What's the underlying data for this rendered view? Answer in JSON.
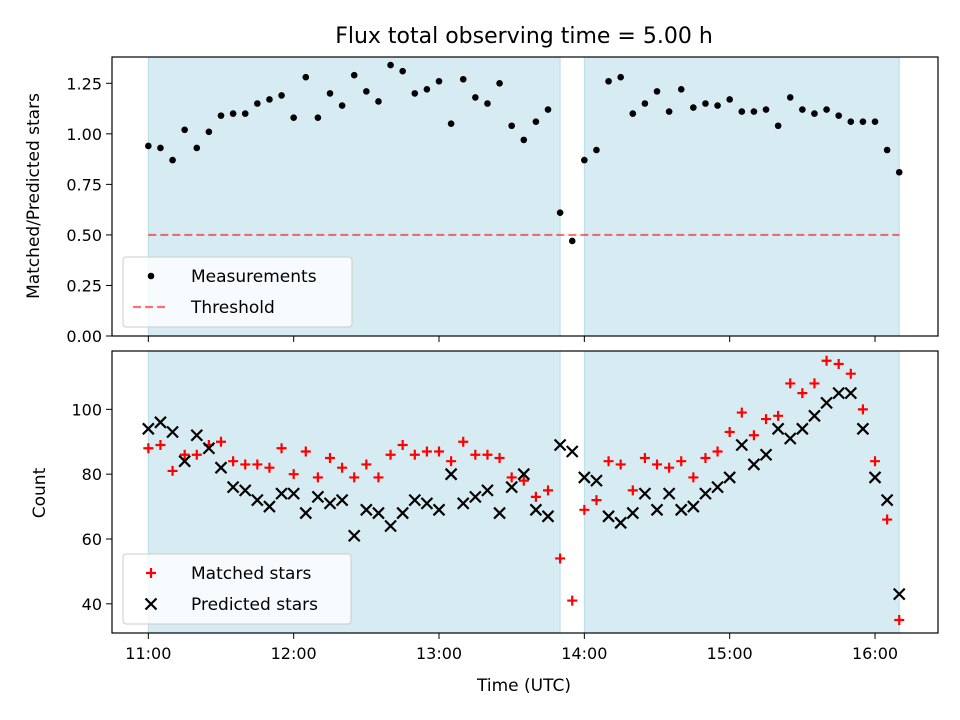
{
  "chart_data": [
    {
      "type": "scatter",
      "title": "Flux total observing time = 5.00 h",
      "xlabel": "",
      "ylabel": "Matched/Predicted stars",
      "x_unit": "hours UTC",
      "xlim": [
        "10:45",
        "16:26"
      ],
      "ylim": [
        0,
        1.38
      ],
      "yticks": [
        "0.00",
        "0.25",
        "0.50",
        "0.75",
        "1.00",
        "1.25"
      ],
      "xticks": [
        "11:00",
        "12:00",
        "13:00",
        "14:00",
        "15:00",
        "16:00"
      ],
      "shaded_intervals": [
        [
          "11:00",
          "13:50"
        ],
        [
          "14:00",
          "16:10"
        ]
      ],
      "threshold": 0.5,
      "legend": {
        "position": "lower-left",
        "entries": [
          "Measurements",
          "Threshold"
        ]
      },
      "series": [
        {
          "name": "Measurements",
          "marker": "dot",
          "color": "#000000",
          "x": [
            "11:00",
            "11:05",
            "11:10",
            "11:15",
            "11:20",
            "11:25",
            "11:30",
            "11:35",
            "11:40",
            "11:45",
            "11:50",
            "11:55",
            "12:00",
            "12:05",
            "12:10",
            "12:15",
            "12:20",
            "12:25",
            "12:30",
            "12:35",
            "12:40",
            "12:45",
            "12:50",
            "12:55",
            "13:00",
            "13:05",
            "13:10",
            "13:15",
            "13:20",
            "13:25",
            "13:30",
            "13:35",
            "13:40",
            "13:45",
            "13:50",
            "13:55",
            "14:00",
            "14:05",
            "14:10",
            "14:15",
            "14:20",
            "14:25",
            "14:30",
            "14:35",
            "14:40",
            "14:45",
            "14:50",
            "14:55",
            "15:00",
            "15:05",
            "15:10",
            "15:15",
            "15:20",
            "15:25",
            "15:30",
            "15:35",
            "15:40",
            "15:45",
            "15:50",
            "15:55",
            "16:00",
            "16:05",
            "16:10"
          ],
          "y": [
            0.94,
            0.93,
            0.87,
            1.02,
            0.93,
            1.01,
            1.09,
            1.1,
            1.1,
            1.15,
            1.17,
            1.19,
            1.08,
            1.28,
            1.08,
            1.2,
            1.14,
            1.29,
            1.21,
            1.16,
            1.34,
            1.31,
            1.2,
            1.22,
            1.26,
            1.05,
            1.27,
            1.18,
            1.15,
            1.25,
            1.04,
            0.97,
            1.06,
            1.12,
            0.61,
            0.47,
            0.87,
            0.92,
            1.26,
            1.28,
            1.1,
            1.15,
            1.21,
            1.11,
            1.22,
            1.13,
            1.15,
            1.14,
            1.17,
            1.11,
            1.11,
            1.12,
            1.04,
            1.18,
            1.12,
            1.1,
            1.12,
            1.09,
            1.06,
            1.06,
            1.06,
            0.92,
            0.81
          ]
        }
      ]
    },
    {
      "type": "scatter",
      "title": "",
      "xlabel": "Time (UTC)",
      "ylabel": "Count",
      "xlim": [
        "10:45",
        "16:26"
      ],
      "ylim": [
        31,
        118
      ],
      "yticks": [
        "40",
        "60",
        "80",
        "100"
      ],
      "xticks": [
        "11:00",
        "12:00",
        "13:00",
        "14:00",
        "15:00",
        "16:00"
      ],
      "shaded_intervals": [
        [
          "11:00",
          "13:50"
        ],
        [
          "14:00",
          "16:10"
        ]
      ],
      "legend": {
        "position": "lower-left",
        "entries": [
          "Matched stars",
          "Predicted stars"
        ]
      },
      "series": [
        {
          "name": "Matched stars",
          "marker": "plus",
          "color": "#ff0000",
          "x": [
            "11:00",
            "11:05",
            "11:10",
            "11:15",
            "11:20",
            "11:25",
            "11:30",
            "11:35",
            "11:40",
            "11:45",
            "11:50",
            "11:55",
            "12:00",
            "12:05",
            "12:10",
            "12:15",
            "12:20",
            "12:25",
            "12:30",
            "12:35",
            "12:40",
            "12:45",
            "12:50",
            "12:55",
            "13:00",
            "13:05",
            "13:10",
            "13:15",
            "13:20",
            "13:25",
            "13:30",
            "13:35",
            "13:40",
            "13:45",
            "13:50",
            "13:55",
            "14:00",
            "14:05",
            "14:10",
            "14:15",
            "14:20",
            "14:25",
            "14:30",
            "14:35",
            "14:40",
            "14:45",
            "14:50",
            "14:55",
            "15:00",
            "15:05",
            "15:10",
            "15:15",
            "15:20",
            "15:25",
            "15:30",
            "15:35",
            "15:40",
            "15:45",
            "15:50",
            "15:55",
            "16:00",
            "16:05",
            "16:10"
          ],
          "y": [
            88,
            89,
            81,
            86,
            86,
            89,
            90,
            84,
            83,
            83,
            82,
            88,
            80,
            87,
            79,
            85,
            82,
            79,
            83,
            79,
            86,
            89,
            86,
            87,
            87,
            84,
            90,
            86,
            86,
            85,
            79,
            78,
            73,
            75,
            54,
            41,
            69,
            72,
            84,
            83,
            75,
            85,
            83,
            82,
            84,
            79,
            85,
            87,
            93,
            99,
            92,
            97,
            98,
            108,
            105,
            108,
            115,
            114,
            111,
            100,
            84,
            66,
            35
          ]
        },
        {
          "name": "Predicted stars",
          "marker": "x",
          "color": "#000000",
          "x": [
            "11:00",
            "11:05",
            "11:10",
            "11:15",
            "11:20",
            "11:25",
            "11:30",
            "11:35",
            "11:40",
            "11:45",
            "11:50",
            "11:55",
            "12:00",
            "12:05",
            "12:10",
            "12:15",
            "12:20",
            "12:25",
            "12:30",
            "12:35",
            "12:40",
            "12:45",
            "12:50",
            "12:55",
            "13:00",
            "13:05",
            "13:10",
            "13:15",
            "13:20",
            "13:25",
            "13:30",
            "13:35",
            "13:40",
            "13:45",
            "13:50",
            "13:55",
            "14:00",
            "14:05",
            "14:10",
            "14:15",
            "14:20",
            "14:25",
            "14:30",
            "14:35",
            "14:40",
            "14:45",
            "14:50",
            "14:55",
            "15:00",
            "15:05",
            "15:10",
            "15:15",
            "15:20",
            "15:25",
            "15:30",
            "15:35",
            "15:40",
            "15:45",
            "15:50",
            "15:55",
            "16:00",
            "16:05",
            "16:10"
          ],
          "y": [
            94,
            96,
            93,
            84,
            92,
            88,
            82,
            76,
            75,
            72,
            70,
            74,
            74,
            68,
            73,
            71,
            72,
            61,
            69,
            68,
            64,
            68,
            72,
            71,
            69,
            80,
            71,
            73,
            75,
            68,
            76,
            80,
            69,
            67,
            89,
            87,
            79,
            78,
            67,
            65,
            68,
            74,
            69,
            74,
            69,
            70,
            74,
            76,
            79,
            89,
            83,
            86,
            94,
            91,
            94,
            98,
            102,
            105,
            105,
            94,
            79,
            72,
            43
          ]
        }
      ]
    }
  ]
}
